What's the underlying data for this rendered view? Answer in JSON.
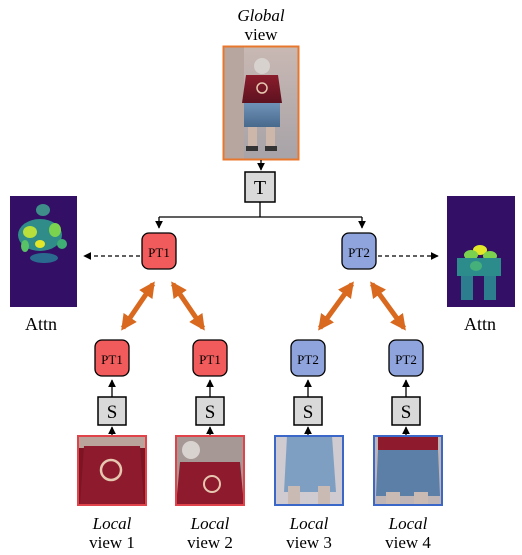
{
  "global_view": {
    "label_italic": "Global",
    "label_plain": "view",
    "border_color": "#e8772e"
  },
  "teacher": {
    "label": "T"
  },
  "students": [
    {
      "label": "S"
    },
    {
      "label": "S"
    },
    {
      "label": "S"
    },
    {
      "label": "S"
    }
  ],
  "tokens": {
    "pt1": {
      "label": "PT1",
      "fill": "#f25b5b"
    },
    "pt2": {
      "label": "PT2",
      "fill": "#8fa4dc"
    }
  },
  "attention_maps": [
    {
      "label": "Attn"
    },
    {
      "label": "Attn"
    }
  ],
  "local_views": [
    {
      "label_italic": "Local",
      "label_plain": "view 1",
      "border_color": "#e0434a"
    },
    {
      "label_italic": "Local",
      "label_plain": "view 2",
      "border_color": "#e0434a"
    },
    {
      "label_italic": "Local",
      "label_plain": "view 3",
      "border_color": "#3a67c8"
    },
    {
      "label_italic": "Local",
      "label_plain": "view 4",
      "border_color": "#3a67c8"
    }
  ],
  "colors": {
    "arrow_orange": "#d8691f",
    "box_gray": "#d9d9d9",
    "attn_bg": "#3b0f6f"
  }
}
